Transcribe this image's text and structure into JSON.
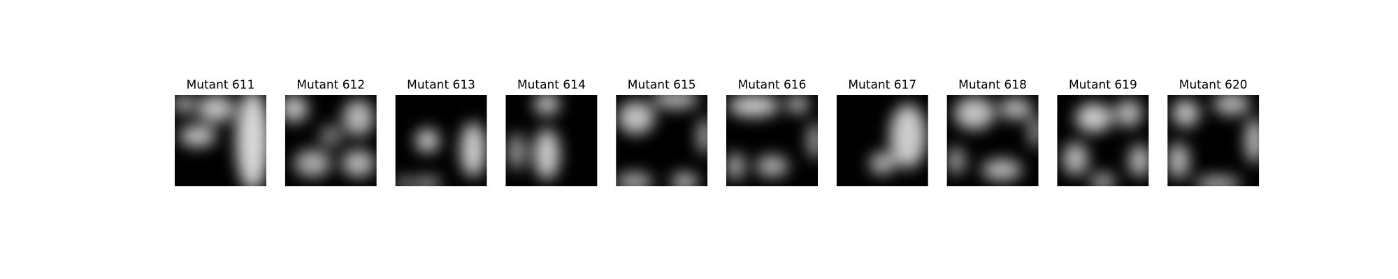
{
  "panels": [
    {
      "title": "Mutant 611"
    },
    {
      "title": "Mutant 612"
    },
    {
      "title": "Mutant 613"
    },
    {
      "title": "Mutant 614"
    },
    {
      "title": "Mutant 615"
    },
    {
      "title": "Mutant 616"
    },
    {
      "title": "Mutant 617"
    },
    {
      "title": "Mutant 618"
    },
    {
      "title": "Mutant 619"
    },
    {
      "title": "Mutant 620"
    }
  ]
}
